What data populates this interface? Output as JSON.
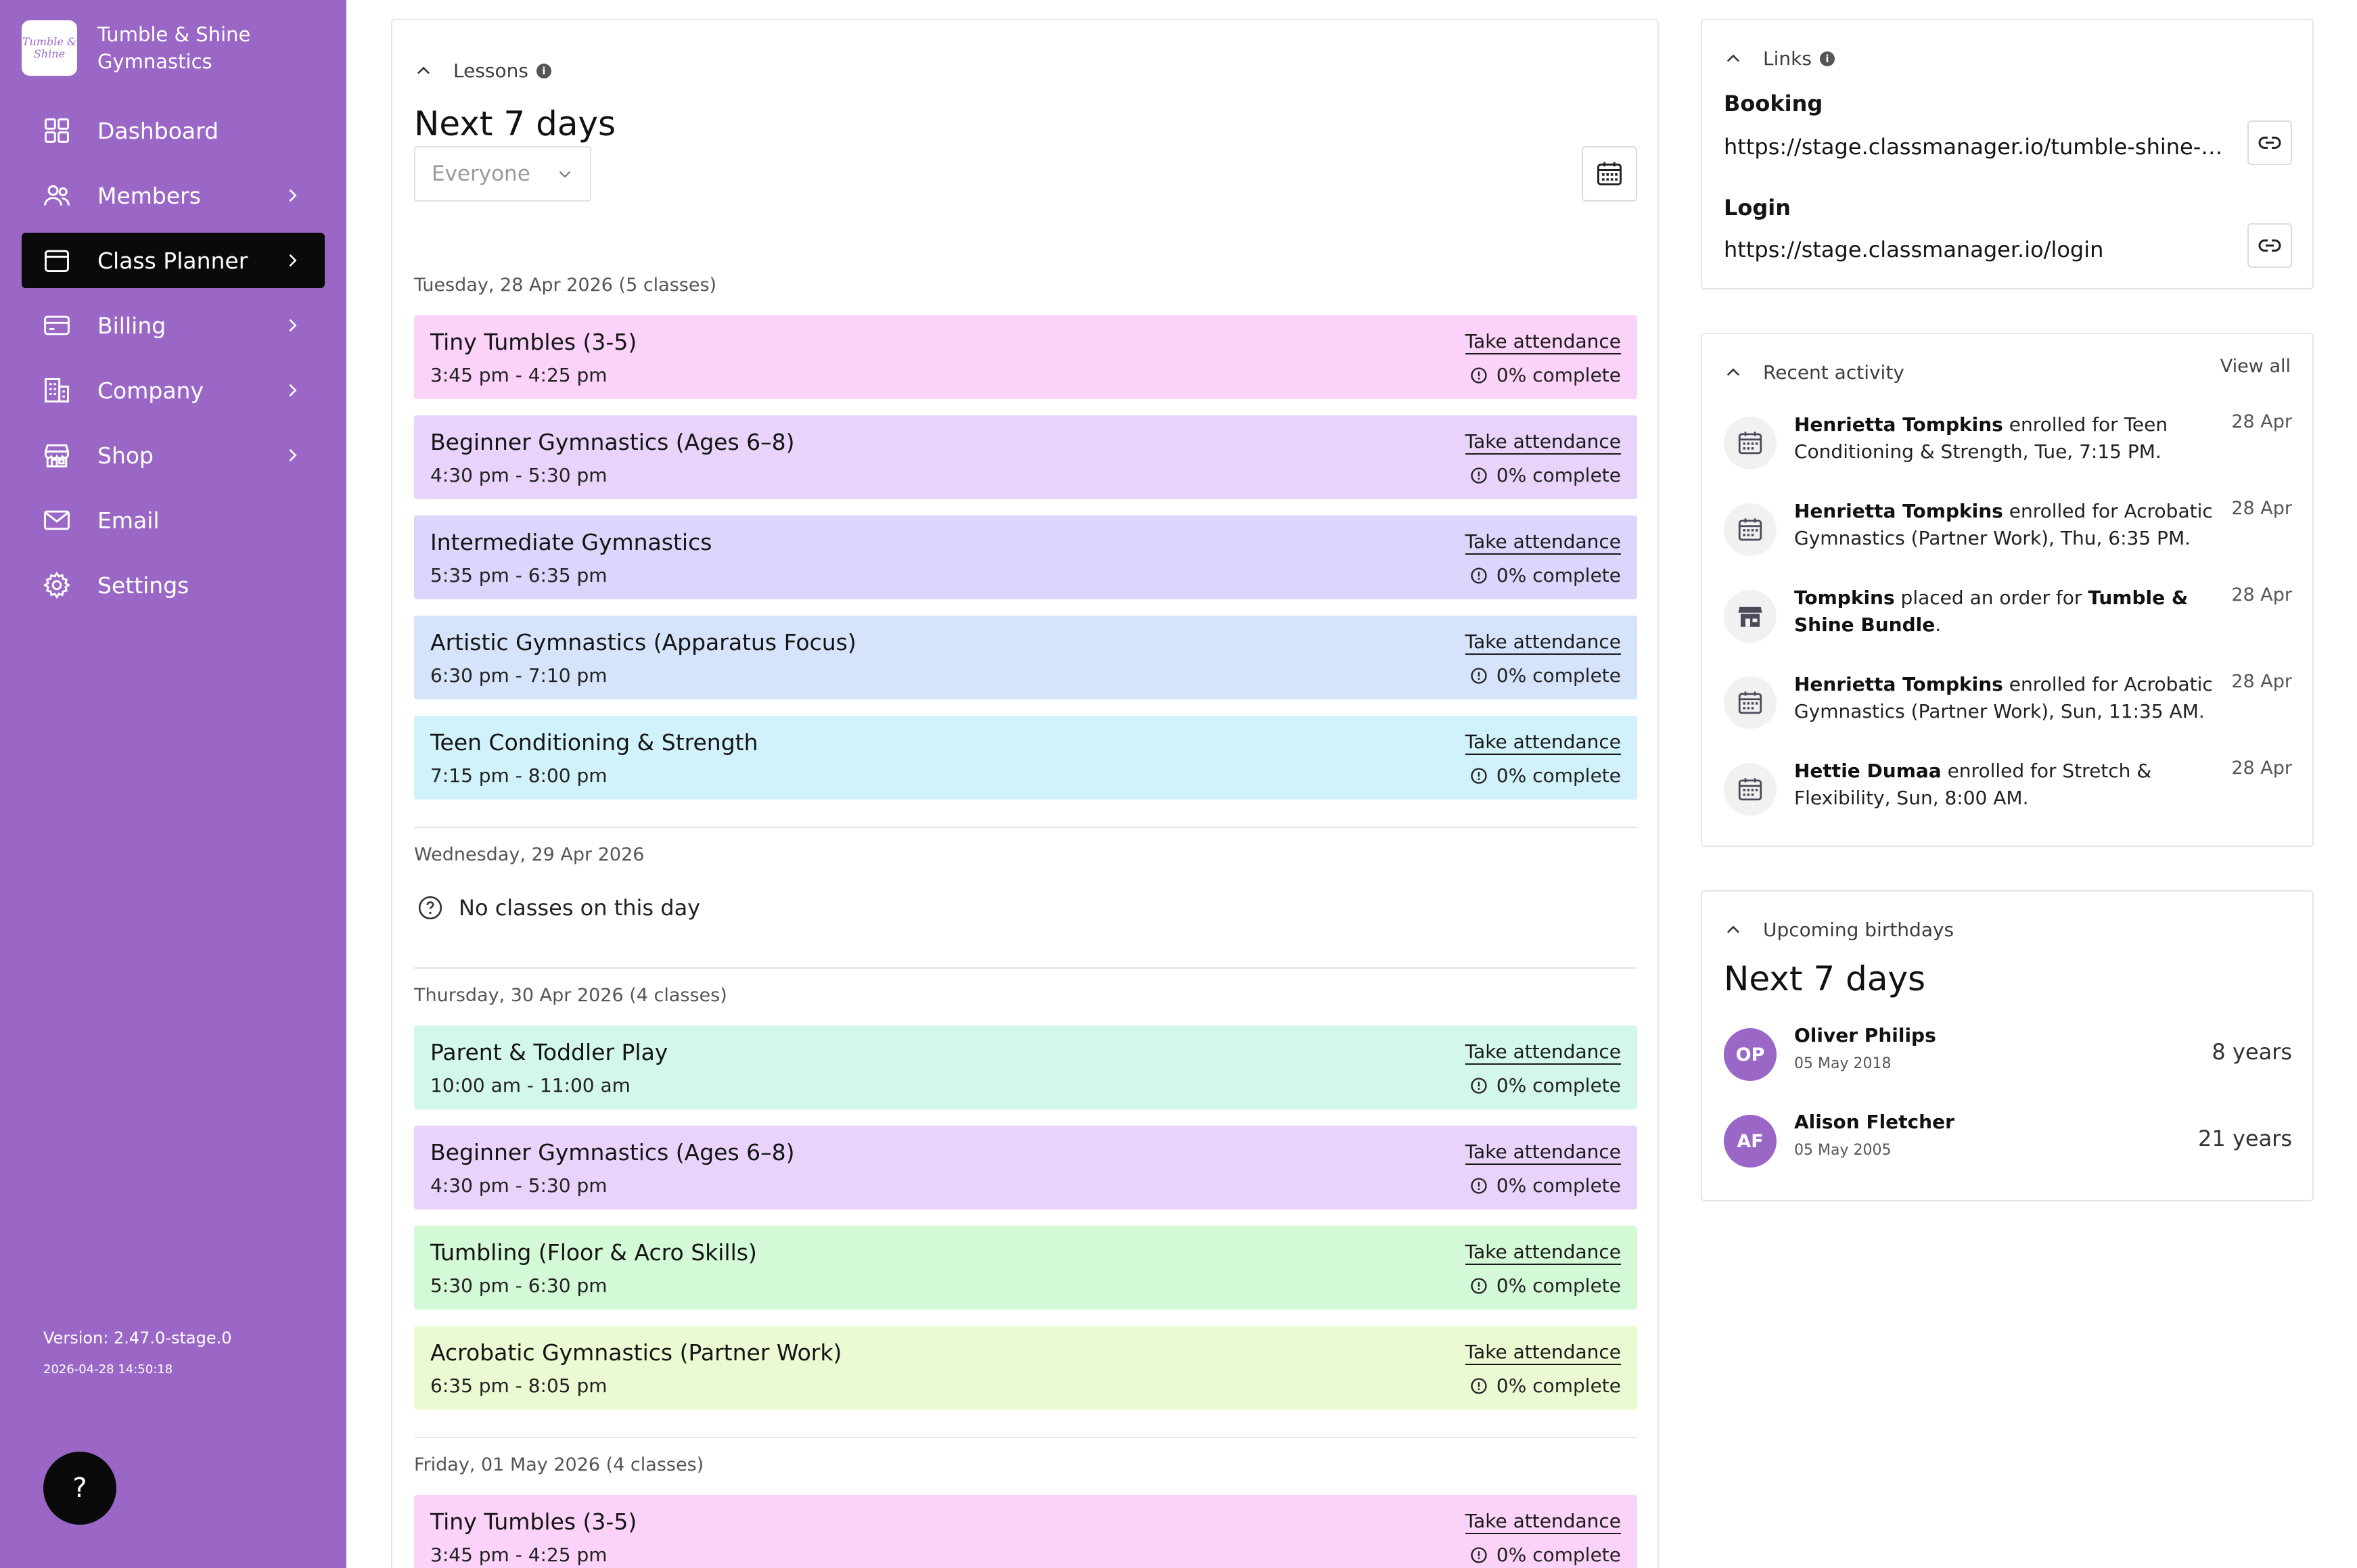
{
  "sidebar": {
    "brand_logo_text": "Tumble & Shine",
    "brand_name": "Tumble & Shine Gymnastics",
    "items": [
      {
        "label": "Dashboard",
        "icon": "grid-icon",
        "active": false,
        "chevron": false
      },
      {
        "label": "Members",
        "icon": "users-icon",
        "active": false,
        "chevron": true
      },
      {
        "label": "Class Planner",
        "icon": "calendar-icon",
        "active": true,
        "chevron": true
      },
      {
        "label": "Billing",
        "icon": "credit-card-icon",
        "active": false,
        "chevron": true
      },
      {
        "label": "Company",
        "icon": "building-icon",
        "active": false,
        "chevron": true
      },
      {
        "label": "Shop",
        "icon": "store-icon",
        "active": false,
        "chevron": true
      },
      {
        "label": "Email",
        "icon": "mail-icon",
        "active": false,
        "chevron": false
      },
      {
        "label": "Settings",
        "icon": "gear-icon",
        "active": false,
        "chevron": false
      }
    ],
    "version": "Version: 2.47.0-stage.0",
    "version_date": "2026-04-28 14:50:18",
    "help_label": "?"
  },
  "lessons": {
    "section_label": "Lessons",
    "title": "Next 7 days",
    "filter_value": "Everyone",
    "take_attendance_label": "Take attendance",
    "days": [
      {
        "label": "Tuesday, 28 Apr 2026 (5 classes)",
        "classes": [
          {
            "name": "Tiny Tumbles (3-5)",
            "time": "3:45 pm - 4:25 pm",
            "complete": "0% complete",
            "color": "#fbd3f8"
          },
          {
            "name": "Beginner Gymnastics (Ages 6–8)",
            "time": "4:30 pm - 5:30 pm",
            "complete": "0% complete",
            "color": "#e9d3fa"
          },
          {
            "name": "Intermediate Gymnastics",
            "time": "5:35 pm - 6:35 pm",
            "complete": "0% complete",
            "color": "#dad6fc"
          },
          {
            "name": "Artistic Gymnastics (Apparatus Focus)",
            "time": "6:30 pm - 7:10 pm",
            "complete": "0% complete",
            "color": "#d6e4fb"
          },
          {
            "name": "Teen Conditioning & Strength",
            "time": "7:15 pm - 8:00 pm",
            "complete": "0% complete",
            "color": "#d2f2fb"
          }
        ]
      },
      {
        "label": "Wednesday, 29 Apr 2026",
        "empty_text": "No classes on this day",
        "classes": []
      },
      {
        "label": "Thursday, 30 Apr 2026 (4 classes)",
        "classes": [
          {
            "name": "Parent & Toddler Play",
            "time": "10:00 am - 11:00 am",
            "complete": "0% complete",
            "color": "#d3f8eb"
          },
          {
            "name": "Beginner Gymnastics (Ages 6–8)",
            "time": "4:30 pm - 5:30 pm",
            "complete": "0% complete",
            "color": "#e9d3fa"
          },
          {
            "name": "Tumbling (Floor & Acro Skills)",
            "time": "5:30 pm - 6:30 pm",
            "complete": "0% complete",
            "color": "#d3f9d6"
          },
          {
            "name": "Acrobatic Gymnastics (Partner Work)",
            "time": "6:35 pm - 8:05 pm",
            "complete": "0% complete",
            "color": "#ecfad3"
          }
        ]
      },
      {
        "label": "Friday, 01 May 2026 (4 classes)",
        "classes": [
          {
            "name": "Tiny Tumbles (3-5)",
            "time": "3:45 pm - 4:25 pm",
            "complete": "0% complete",
            "color": "#fbd3f8"
          }
        ]
      }
    ]
  },
  "links": {
    "section_label": "Links",
    "booking_label": "Booking",
    "booking_url": "https://stage.classmanager.io/tumble-shine-gymnastics",
    "login_label": "Login",
    "login_url": "https://stage.classmanager.io/login"
  },
  "activity": {
    "section_label": "Recent activity",
    "view_all": "View all",
    "items": [
      {
        "parts": [
          {
            "b": "Henrietta Tompkins"
          },
          {
            "t": " enrolled for Teen Conditioning & Strength, Tue, 7:15 PM."
          }
        ],
        "date": "28 Apr",
        "icon": "calendar-icon"
      },
      {
        "parts": [
          {
            "b": "Henrietta Tompkins"
          },
          {
            "t": " enrolled for Acrobatic Gymnastics (Partner Work), Thu, 6:35 PM."
          }
        ],
        "date": "28 Apr",
        "icon": "calendar-icon"
      },
      {
        "parts": [
          {
            "b": "Tompkins"
          },
          {
            "t": " placed an order for "
          },
          {
            "b": "Tumble & Shine Bundle"
          },
          {
            "t": "."
          }
        ],
        "date": "28 Apr",
        "icon": "store-icon"
      },
      {
        "parts": [
          {
            "b": "Henrietta Tompkins"
          },
          {
            "t": " enrolled for Acrobatic Gymnastics (Partner Work), Sun, 11:35 AM."
          }
        ],
        "date": "28 Apr",
        "icon": "calendar-icon"
      },
      {
        "parts": [
          {
            "b": "Hettie Dumaa"
          },
          {
            "t": " enrolled for Stretch & Flexibility, Sun, 8:00 AM."
          }
        ],
        "date": "28 Apr",
        "icon": "calendar-icon"
      }
    ]
  },
  "birthdays": {
    "section_label": "Upcoming birthdays",
    "title": "Next 7 days",
    "items": [
      {
        "initials": "OP",
        "name": "Oliver Philips",
        "date": "05 May 2018",
        "age": "8 years"
      },
      {
        "initials": "AF",
        "name": "Alison Fletcher",
        "date": "05 May 2005",
        "age": "21 years"
      }
    ]
  },
  "colors": {
    "sidebar_bg": "#9b67c6",
    "active_nav_bg": "#0a0a0a",
    "avatar_bg": "#9b67c6"
  }
}
